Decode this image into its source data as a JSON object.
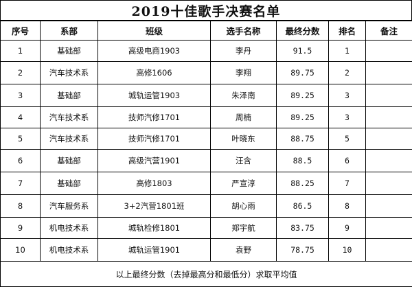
{
  "title": "2019十佳歌手决赛名单",
  "headers": [
    "序号",
    "系部",
    "班级",
    "选手名称",
    "最终分数",
    "排名",
    "备注"
  ],
  "rows": [
    {
      "no": "1",
      "dept": "基础部",
      "class": "高级电商1903",
      "name": "李丹",
      "score": "91.5",
      "rank": "1",
      "note": ""
    },
    {
      "no": "2",
      "dept": "汽车技术系",
      "class": "高修1606",
      "name": "李翔",
      "score": "89.75",
      "rank": "2",
      "note": ""
    },
    {
      "no": "3",
      "dept": "基础部",
      "class": "城轨运管1903",
      "name": "朱泽南",
      "score": "89.25",
      "rank": "3",
      "note": ""
    },
    {
      "no": "4",
      "dept": "汽车技术系",
      "class": "技师汽修1701",
      "name": "周楠",
      "score": "89.25",
      "rank": "3",
      "note": ""
    },
    {
      "no": "5",
      "dept": "汽车技术系",
      "class": "技师汽修1701",
      "name": "叶晓东",
      "score": "88.75",
      "rank": "5",
      "note": ""
    },
    {
      "no": "6",
      "dept": "基础部",
      "class": "高级汽营1901",
      "name": "汪含",
      "score": "88.5",
      "rank": "6",
      "note": ""
    },
    {
      "no": "7",
      "dept": "基础部",
      "class": "高修1803",
      "name": "严宣淳",
      "score": "88.25",
      "rank": "7",
      "note": ""
    },
    {
      "no": "8",
      "dept": "汽车服务系",
      "class": "3+2汽营1801班",
      "name": "胡心雨",
      "score": "86.5",
      "rank": "8",
      "note": ""
    },
    {
      "no": "9",
      "dept": "机电技术系",
      "class": "城轨检修1801",
      "name": "郑宇航",
      "score": "83.75",
      "rank": "9",
      "note": ""
    },
    {
      "no": "10",
      "dept": "机电技术系",
      "class": "城轨运管1901",
      "name": "袁野",
      "score": "78.75",
      "rank": "10",
      "note": ""
    }
  ],
  "footer": "以上最终分数（去掉最高分和最低分）求取平均值"
}
